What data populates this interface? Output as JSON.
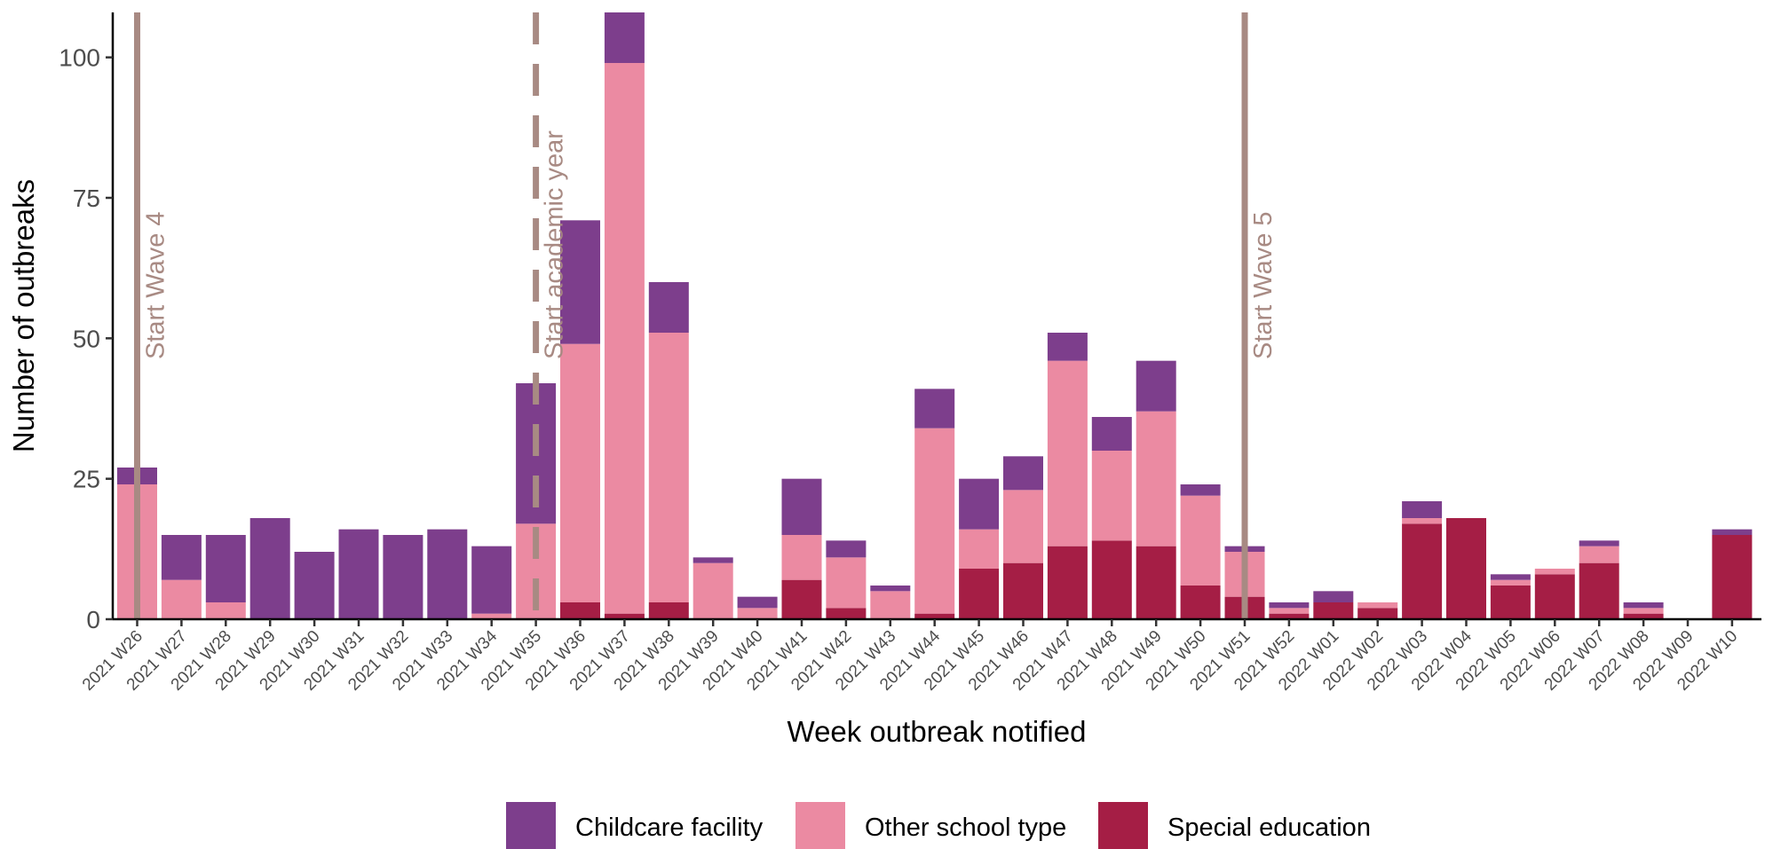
{
  "chart_data": {
    "type": "bar",
    "stacked": true,
    "xlabel": "Week outbreak notified",
    "ylabel": "Number of outbreaks",
    "ylim": [
      0,
      108
    ],
    "yticks": [
      0,
      25,
      50,
      75,
      100
    ],
    "grid": false,
    "legend_position": "bottom",
    "categories": [
      "2021 W26",
      "2021 W27",
      "2021 W28",
      "2021 W29",
      "2021 W30",
      "2021 W31",
      "2021 W32",
      "2021 W33",
      "2021 W34",
      "2021 W35",
      "2021 W36",
      "2021 W37",
      "2021 W38",
      "2021 W39",
      "2021 W40",
      "2021 W41",
      "2021 W42",
      "2021 W43",
      "2021 W44",
      "2021 W45",
      "2021 W46",
      "2021 W47",
      "2021 W48",
      "2021 W49",
      "2021 W50",
      "2021 W51",
      "2021 W52",
      "2022 W01",
      "2022 W02",
      "2022 W03",
      "2022 W04",
      "2022 W05",
      "2022 W06",
      "2022 W07",
      "2022 W08",
      "2022 W09",
      "2022 W10"
    ],
    "series": [
      {
        "name": "Special education",
        "color": "#a51e45",
        "values": [
          0,
          0,
          0,
          0,
          0,
          0,
          0,
          0,
          0,
          0,
          3,
          1,
          3,
          0,
          0,
          7,
          2,
          0,
          1,
          9,
          10,
          13,
          14,
          13,
          6,
          4,
          1,
          3,
          2,
          17,
          18,
          6,
          8,
          10,
          1,
          0,
          15
        ]
      },
      {
        "name": "Other school type",
        "color": "#eb8aa2",
        "values": [
          24,
          7,
          3,
          0,
          0,
          0,
          0,
          0,
          1,
          17,
          46,
          98,
          48,
          10,
          2,
          8,
          9,
          5,
          33,
          7,
          13,
          33,
          16,
          24,
          16,
          8,
          1,
          0,
          1,
          1,
          0,
          1,
          1,
          3,
          1,
          0,
          0
        ]
      },
      {
        "name": "Childcare facility",
        "color": "#7d3e8c",
        "values": [
          3,
          8,
          12,
          18,
          12,
          16,
          15,
          16,
          12,
          25,
          22,
          9,
          9,
          1,
          2,
          10,
          3,
          1,
          7,
          9,
          6,
          5,
          6,
          9,
          2,
          1,
          1,
          2,
          0,
          3,
          0,
          1,
          0,
          1,
          1,
          0,
          1
        ]
      }
    ],
    "annotations": [
      {
        "label": "Start Wave 4",
        "category": "2021 W26",
        "style": "solid",
        "color": "#a88a83"
      },
      {
        "label": "Start academic year",
        "category": "2021 W35",
        "style": "dashed",
        "color": "#a88a83"
      },
      {
        "label": "Start Wave 5",
        "category": "2021 W51",
        "style": "solid",
        "color": "#a88a83"
      }
    ],
    "legend": [
      {
        "label": "Childcare facility",
        "color": "#7d3e8c"
      },
      {
        "label": "Other school type",
        "color": "#eb8aa2"
      },
      {
        "label": "Special education",
        "color": "#a51e45"
      }
    ]
  }
}
